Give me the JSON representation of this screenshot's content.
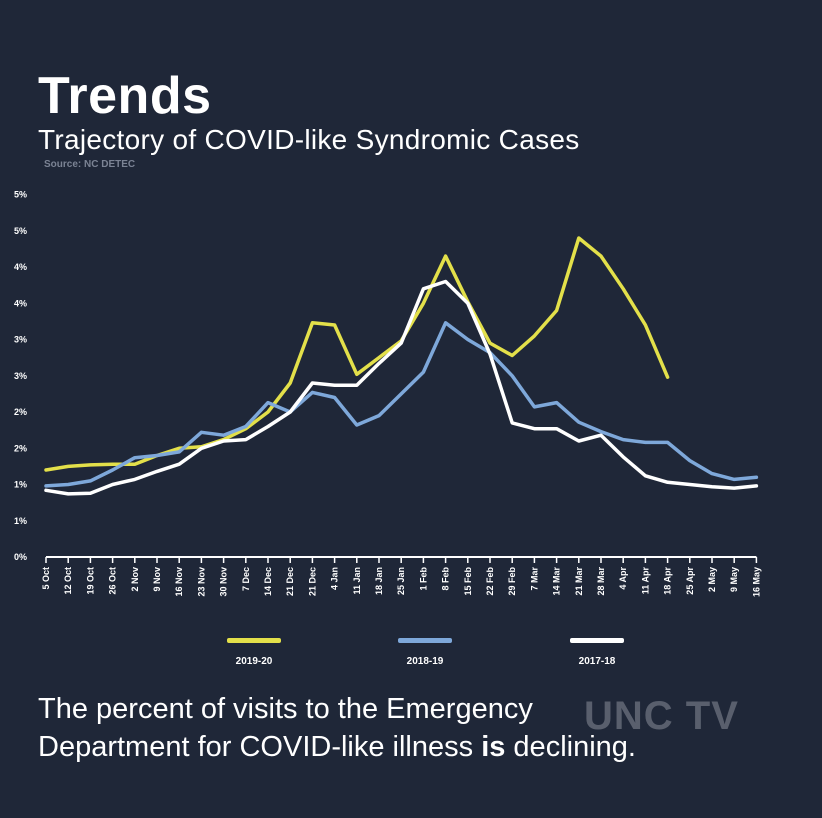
{
  "header": {
    "title": "Trends",
    "subtitle": "Trajectory of COVID-like Syndromic Cases",
    "source": "Source: NC DETEC"
  },
  "footer": {
    "line1": "The percent of visits to the Emergency",
    "line2_pre": "Department for COVID-like illness ",
    "line2_bold": "is",
    "line2_post": " declining."
  },
  "watermark": "UNC TV",
  "chart_data": {
    "type": "line",
    "title": "Trajectory of COVID-like Syndromic Cases",
    "xlabel": "",
    "ylabel": "",
    "ylim": [
      0,
      5
    ],
    "ytick_labels": [
      "0%",
      "1%",
      "1%",
      "2%",
      "2%",
      "3%",
      "3%",
      "4%",
      "4%",
      "5%",
      "5%"
    ],
    "categories": [
      "5 Oct",
      "12 Oct",
      "19 Oct",
      "26 Oct",
      "2 Nov",
      "9 Nov",
      "16 Nov",
      "23 Nov",
      "30 Nov",
      "7 Dec",
      "14 Dec",
      "21 Dec",
      "21 Dec",
      "4 Jan",
      "11 Jan",
      "18 Jan",
      "25 Jan",
      "1 Feb",
      "8 Feb",
      "15 Feb",
      "22 Feb",
      "29 Feb",
      "7 Mar",
      "14 Mar",
      "21 Mar",
      "28 Mar",
      "4 Apr",
      "11 Apr",
      "18 Apr",
      "25 Apr",
      "2 May",
      "9 May",
      "16 May"
    ],
    "series": [
      {
        "name": "2019-20",
        "color": "#e3e04a",
        "values": [
          1.2,
          1.25,
          1.27,
          1.28,
          1.28,
          1.4,
          1.5,
          1.52,
          1.62,
          1.77,
          2.0,
          2.4,
          3.23,
          3.2,
          2.52,
          2.75,
          2.98,
          3.5,
          4.15,
          3.52,
          2.95,
          2.78,
          3.05,
          3.4,
          4.4,
          4.15,
          3.7,
          3.2,
          2.48,
          null,
          null,
          null,
          null
        ]
      },
      {
        "name": "2018-19",
        "color": "#7ea8da",
        "values": [
          0.98,
          1.0,
          1.05,
          1.2,
          1.37,
          1.4,
          1.45,
          1.72,
          1.68,
          1.8,
          2.13,
          2.0,
          2.27,
          2.2,
          1.82,
          1.95,
          2.25,
          2.55,
          3.23,
          3.0,
          2.82,
          2.5,
          2.07,
          2.13,
          1.86,
          1.73,
          1.62,
          1.58,
          1.58,
          1.33,
          1.15,
          1.07,
          1.1
        ]
      },
      {
        "name": "2017-18",
        "color": "#ffffff",
        "values": [
          0.92,
          0.87,
          0.88,
          1.0,
          1.07,
          1.18,
          1.28,
          1.5,
          1.6,
          1.62,
          1.8,
          2.0,
          2.4,
          2.37,
          2.37,
          2.67,
          2.95,
          3.7,
          3.8,
          3.5,
          2.8,
          1.85,
          1.77,
          1.77,
          1.6,
          1.68,
          1.38,
          1.12,
          1.03,
          1.0,
          0.97,
          0.95,
          0.98
        ]
      }
    ],
    "legend_position": "bottom"
  }
}
